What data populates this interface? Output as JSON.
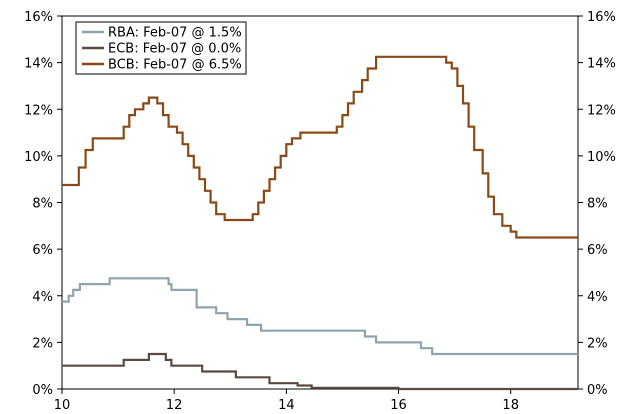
{
  "chart_data": {
    "type": "line",
    "step": true,
    "xlim": [
      10,
      19.2
    ],
    "ylim": [
      0,
      16
    ],
    "x_ticks": [
      10,
      12,
      14,
      16,
      18
    ],
    "y_ticks": [
      "0%",
      "2%",
      "4%",
      "6%",
      "8%",
      "10%",
      "12%",
      "14%",
      "16%"
    ],
    "y_tick_values": [
      0,
      2,
      4,
      6,
      8,
      10,
      12,
      14,
      16
    ],
    "xlabel": "",
    "ylabel": "",
    "grid": false,
    "legend_position": "top-left",
    "series": [
      {
        "name": "RBA: Feb-07 @ 1.5%",
        "color": "#8FA3AE",
        "points": [
          [
            10.0,
            3.75
          ],
          [
            10.12,
            4.0
          ],
          [
            10.2,
            4.25
          ],
          [
            10.32,
            4.5
          ],
          [
            10.85,
            4.75
          ],
          [
            11.9,
            4.5
          ],
          [
            11.95,
            4.25
          ],
          [
            12.4,
            3.5
          ],
          [
            12.75,
            3.25
          ],
          [
            12.95,
            3.0
          ],
          [
            13.3,
            2.75
          ],
          [
            13.55,
            2.5
          ],
          [
            15.4,
            2.25
          ],
          [
            15.6,
            2.0
          ],
          [
            16.4,
            1.75
          ],
          [
            16.6,
            1.5
          ],
          [
            19.2,
            1.5
          ]
        ]
      },
      {
        "name": "ECB: Feb-07 @ 0.0%",
        "color": "#5A4A40",
        "points": [
          [
            10.0,
            1.0
          ],
          [
            11.0,
            1.0
          ],
          [
            11.1,
            1.25
          ],
          [
            11.55,
            1.5
          ],
          [
            11.85,
            1.25
          ],
          [
            11.95,
            1.0
          ],
          [
            12.5,
            0.75
          ],
          [
            13.1,
            0.5
          ],
          [
            13.7,
            0.25
          ],
          [
            14.2,
            0.15
          ],
          [
            14.45,
            0.05
          ],
          [
            14.75,
            0.05
          ],
          [
            16.0,
            0.0
          ],
          [
            19.2,
            0.0
          ]
        ]
      },
      {
        "name": "BCB: Feb-07 @ 6.5%",
        "color": "#8A4A18",
        "points": [
          [
            10.0,
            8.75
          ],
          [
            10.3,
            9.5
          ],
          [
            10.42,
            10.25
          ],
          [
            10.55,
            10.75
          ],
          [
            11.1,
            11.25
          ],
          [
            11.2,
            11.75
          ],
          [
            11.3,
            12.0
          ],
          [
            11.45,
            12.25
          ],
          [
            11.55,
            12.5
          ],
          [
            11.7,
            12.25
          ],
          [
            11.8,
            11.75
          ],
          [
            11.9,
            11.25
          ],
          [
            12.05,
            11.0
          ],
          [
            12.15,
            10.5
          ],
          [
            12.25,
            10.0
          ],
          [
            12.35,
            9.5
          ],
          [
            12.45,
            9.0
          ],
          [
            12.55,
            8.5
          ],
          [
            12.65,
            8.0
          ],
          [
            12.75,
            7.5
          ],
          [
            12.9,
            7.25
          ],
          [
            13.4,
            7.5
          ],
          [
            13.5,
            8.0
          ],
          [
            13.6,
            8.5
          ],
          [
            13.7,
            9.0
          ],
          [
            13.8,
            9.5
          ],
          [
            13.9,
            10.0
          ],
          [
            14.0,
            10.5
          ],
          [
            14.1,
            10.75
          ],
          [
            14.25,
            11.0
          ],
          [
            14.9,
            11.25
          ],
          [
            15.0,
            11.75
          ],
          [
            15.1,
            12.25
          ],
          [
            15.2,
            12.75
          ],
          [
            15.35,
            13.25
          ],
          [
            15.45,
            13.75
          ],
          [
            15.6,
            14.25
          ],
          [
            16.85,
            14.0
          ],
          [
            16.95,
            13.75
          ],
          [
            17.05,
            13.0
          ],
          [
            17.15,
            12.25
          ],
          [
            17.25,
            11.25
          ],
          [
            17.35,
            10.25
          ],
          [
            17.5,
            9.25
          ],
          [
            17.6,
            8.25
          ],
          [
            17.7,
            7.5
          ],
          [
            17.85,
            7.0
          ],
          [
            18.0,
            6.75
          ],
          [
            18.1,
            6.5
          ],
          [
            19.2,
            6.5
          ]
        ]
      }
    ]
  }
}
